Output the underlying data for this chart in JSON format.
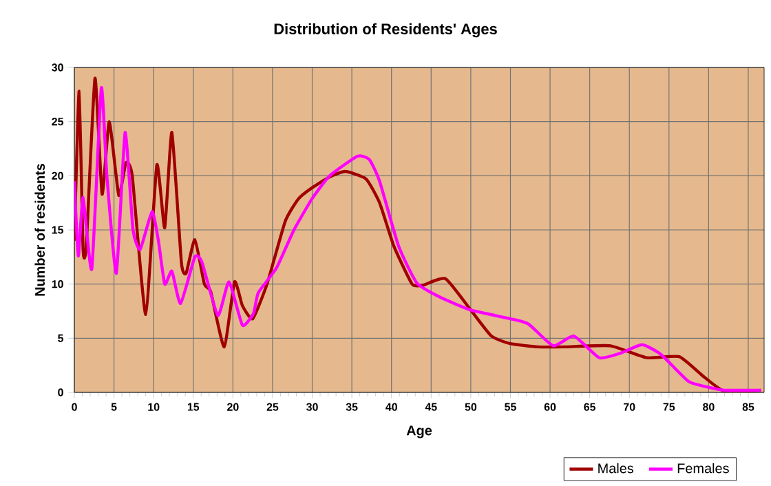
{
  "chart_data": {
    "type": "line",
    "title": "Distribution of Residents' Ages",
    "xlabel": "Age",
    "ylabel": "Number of residents",
    "xlim": [
      0,
      87
    ],
    "ylim": [
      0,
      30
    ],
    "xticks": [
      0,
      5,
      10,
      15,
      20,
      25,
      30,
      35,
      40,
      45,
      50,
      55,
      60,
      65,
      70,
      75,
      80,
      85
    ],
    "yticks": [
      0,
      5,
      10,
      15,
      20,
      25,
      30
    ],
    "grid": true,
    "legend": "bottom right",
    "line_style": "solid",
    "marker": "none",
    "series": [
      {
        "name": "Males",
        "color": "#a00000",
        "x": [
          0,
          0.6,
          1.1,
          1.5,
          2.6,
          3.5,
          4.4,
          5.6,
          6.5,
          7.3,
          9,
          10.4,
          11.4,
          12.3,
          13.5,
          14.1,
          15.2,
          16.4,
          17.2,
          18.9,
          20.2,
          21.2,
          22.5,
          24.3,
          26.6,
          28.3,
          30,
          32.2,
          34.2,
          36.8,
          38.5,
          40.3,
          42.6,
          44,
          46.8,
          50,
          52.6,
          55,
          58.5,
          61.8,
          67.6,
          72.2,
          76.3,
          79.3,
          82,
          86.6
        ],
        "values": [
          14,
          27.8,
          13.2,
          13.5,
          29,
          18.3,
          25,
          18.2,
          21.2,
          20,
          7.2,
          21,
          15.2,
          24,
          12,
          11,
          14.1,
          10,
          9.3,
          4.2,
          10.2,
          8,
          6.8,
          10,
          15.8,
          17.9,
          18.9,
          19.9,
          20.4,
          19.7,
          17.5,
          13.5,
          10,
          9.9,
          10.5,
          7.6,
          5.2,
          4.5,
          4.2,
          4.2,
          4.3,
          3.2,
          3.3,
          1.5,
          0.1,
          0.2
        ]
      },
      {
        "name": "Females",
        "color": "#ff00ff",
        "x": [
          0,
          0.5,
          1.1,
          2.2,
          3.4,
          4.1,
          5.3,
          6.4,
          7.4,
          8.3,
          9.8,
          10.6,
          11.4,
          12.3,
          13.4,
          15.2,
          16.1,
          18.1,
          19.5,
          21.2,
          22.6,
          23.2,
          25.5,
          27.7,
          30,
          32.2,
          35.7,
          37.2,
          38.5,
          40.9,
          43.2,
          46.1,
          50,
          55,
          57.3,
          60.4,
          63,
          66.2,
          68.8,
          71.6,
          74,
          77.5,
          80.4,
          82,
          86.6
        ],
        "values": [
          19.5,
          12.6,
          18,
          11.4,
          28.1,
          20,
          11,
          24,
          15,
          13.2,
          16.7,
          14,
          10,
          11.2,
          8.2,
          12.5,
          12,
          7.1,
          10.2,
          6.2,
          7.3,
          9.2,
          11.5,
          15,
          17.9,
          20,
          21.8,
          21.5,
          19.5,
          13.5,
          10.1,
          8.8,
          7.6,
          6.8,
          6.3,
          4.3,
          5.2,
          3.2,
          3.6,
          4.4,
          3.5,
          1,
          0.4,
          0.2,
          0.2
        ]
      }
    ]
  }
}
